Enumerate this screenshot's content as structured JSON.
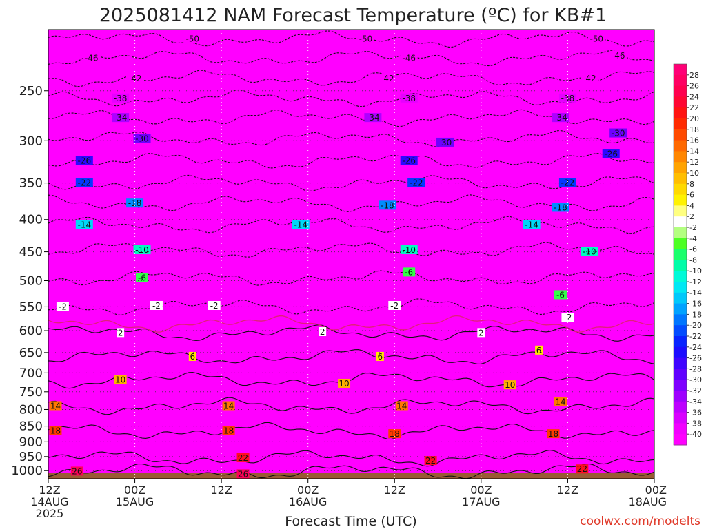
{
  "chart_data": {
    "type": "heatmap",
    "title": "2025081412 NAM Forecast Temperature (ºC) for KB#1",
    "xlabel": "Forecast Time (UTC)",
    "ylabel": "",
    "credit": "coolwx.com/modelts",
    "x_ticks": [
      {
        "hour": 0,
        "l1": "12Z",
        "l2": "14AUG",
        "l3": "2025"
      },
      {
        "hour": 12,
        "l1": "00Z",
        "l2": "15AUG",
        "l3": ""
      },
      {
        "hour": 24,
        "l1": "12Z",
        "l2": "",
        "l3": ""
      },
      {
        "hour": 36,
        "l1": "00Z",
        "l2": "16AUG",
        "l3": ""
      },
      {
        "hour": 48,
        "l1": "12Z",
        "l2": "",
        "l3": ""
      },
      {
        "hour": 60,
        "l1": "00Z",
        "l2": "17AUG",
        "l3": ""
      },
      {
        "hour": 72,
        "l1": "12Z",
        "l2": "",
        "l3": ""
      },
      {
        "hour": 84,
        "l1": "00Z",
        "l2": "18AUG",
        "l3": ""
      }
    ],
    "xlim": [
      0,
      84
    ],
    "y_ticks": [
      250,
      300,
      350,
      400,
      450,
      500,
      550,
      600,
      650,
      700,
      750,
      800,
      850,
      900,
      950,
      1000
    ],
    "ylim": [
      1030,
      200
    ],
    "y_scale": "log-pressure (hPa), inverted",
    "grid": true,
    "contour_levels": [
      26,
      22,
      18,
      14,
      10,
      6,
      2,
      -2,
      -6,
      -10,
      -14,
      -18,
      -22,
      -26,
      -30,
      -34,
      -38,
      -42,
      -46,
      -50
    ],
    "isotherm_pressures": [
      {
        "t": 26,
        "p": 1003
      },
      {
        "t": 22,
        "p": 955
      },
      {
        "t": 18,
        "p": 865
      },
      {
        "t": 14,
        "p": 790
      },
      {
        "t": 10,
        "p": 718
      },
      {
        "t": 6,
        "p": 660
      },
      {
        "t": 2,
        "p": 605
      },
      {
        "t": 0,
        "p": 585
      },
      {
        "t": -2,
        "p": 550
      },
      {
        "t": -6,
        "p": 495
      },
      {
        "t": -10,
        "p": 447
      },
      {
        "t": -14,
        "p": 408
      },
      {
        "t": -18,
        "p": 377
      },
      {
        "t": -22,
        "p": 350
      },
      {
        "t": -26,
        "p": 323
      },
      {
        "t": -30,
        "p": 298
      },
      {
        "t": -34,
        "p": 276
      },
      {
        "t": -38,
        "p": 257
      },
      {
        "t": -42,
        "p": 239
      },
      {
        "t": -46,
        "p": 222
      },
      {
        "t": -50,
        "p": 207
      }
    ],
    "contour_labels": [
      {
        "t": -50,
        "pos": [
          [
            20,
            207
          ],
          [
            44,
            207
          ],
          [
            76,
            207
          ]
        ]
      },
      {
        "t": -46,
        "pos": [
          [
            6,
            222
          ],
          [
            50,
            222
          ],
          [
            79,
            220
          ]
        ]
      },
      {
        "t": -42,
        "pos": [
          [
            12,
            239
          ],
          [
            47,
            239
          ],
          [
            75,
            239
          ]
        ]
      },
      {
        "t": -38,
        "pos": [
          [
            10,
            257
          ],
          [
            50,
            257
          ],
          [
            72,
            257
          ]
        ]
      },
      {
        "t": -34,
        "pos": [
          [
            10,
            276
          ],
          [
            45,
            276
          ],
          [
            71,
            276
          ]
        ]
      },
      {
        "t": -30,
        "pos": [
          [
            13,
            298
          ],
          [
            55,
            302
          ],
          [
            79,
            292
          ]
        ]
      },
      {
        "t": -26,
        "pos": [
          [
            5,
            323
          ],
          [
            50,
            323
          ],
          [
            78,
            315
          ]
        ]
      },
      {
        "t": -22,
        "pos": [
          [
            5,
            350
          ],
          [
            51,
            350
          ],
          [
            72,
            350
          ]
        ]
      },
      {
        "t": -18,
        "pos": [
          [
            12,
            377
          ],
          [
            47,
            380
          ],
          [
            71,
            383
          ]
        ]
      },
      {
        "t": -14,
        "pos": [
          [
            5,
            408
          ],
          [
            35,
            408
          ],
          [
            67,
            408
          ]
        ]
      },
      {
        "t": -10,
        "pos": [
          [
            13,
            447
          ],
          [
            50,
            447
          ],
          [
            75,
            450
          ]
        ]
      },
      {
        "t": -6,
        "pos": [
          [
            13,
            495
          ],
          [
            50,
            485
          ],
          [
            71,
            527
          ]
        ]
      },
      {
        "t": -2,
        "pos": [
          [
            2,
            550
          ],
          [
            15,
            548
          ],
          [
            23,
            548
          ],
          [
            48,
            548
          ],
          [
            72,
            572
          ]
        ]
      },
      {
        "t": 2,
        "pos": [
          [
            10,
            605
          ],
          [
            38,
            603
          ],
          [
            60,
            605
          ]
        ]
      },
      {
        "t": 6,
        "pos": [
          [
            20,
            660
          ],
          [
            46,
            660
          ],
          [
            68,
            645
          ]
        ]
      },
      {
        "t": 10,
        "pos": [
          [
            10,
            718
          ],
          [
            41,
            728
          ],
          [
            64,
            732
          ]
        ]
      },
      {
        "t": 14,
        "pos": [
          [
            1,
            790
          ],
          [
            25,
            790
          ],
          [
            49,
            790
          ],
          [
            71,
            778
          ]
        ]
      },
      {
        "t": 18,
        "pos": [
          [
            1,
            865
          ],
          [
            25,
            865
          ],
          [
            48,
            875
          ],
          [
            70,
            875
          ]
        ]
      },
      {
        "t": 22,
        "pos": [
          [
            27,
            955
          ],
          [
            53,
            965
          ],
          [
            74,
            995
          ]
        ]
      },
      {
        "t": 26,
        "pos": [
          [
            4,
            1003
          ],
          [
            27,
            1013
          ]
        ]
      }
    ],
    "colorbar": {
      "labels": [
        28,
        26,
        24,
        22,
        20,
        18,
        16,
        14,
        12,
        10,
        8,
        6,
        4,
        2,
        -2,
        -4,
        -6,
        -8,
        -10,
        -12,
        -14,
        -16,
        -18,
        -20,
        -22,
        -24,
        -26,
        -28,
        -30,
        -32,
        -34,
        -36,
        -38,
        -40
      ],
      "stops": [
        {
          "t": -52,
          "color": "#ff00ff"
        },
        {
          "t": -40,
          "color": "#ff00ff"
        },
        {
          "t": -36,
          "color": "#cc00ff"
        },
        {
          "t": -32,
          "color": "#8e00ff"
        },
        {
          "t": -28,
          "color": "#5000ff"
        },
        {
          "t": -24,
          "color": "#0a10ff"
        },
        {
          "t": -20,
          "color": "#0060ff"
        },
        {
          "t": -16,
          "color": "#00b8ff"
        },
        {
          "t": -12,
          "color": "#00f8f0"
        },
        {
          "t": -8,
          "color": "#00ff90"
        },
        {
          "t": -4,
          "color": "#66ff00"
        },
        {
          "t": -2,
          "color": "#ffffff"
        },
        {
          "t": 2,
          "color": "#ffffff"
        },
        {
          "t": 4,
          "color": "#ffff00"
        },
        {
          "t": 8,
          "color": "#ffcc00"
        },
        {
          "t": 12,
          "color": "#ff9500"
        },
        {
          "t": 16,
          "color": "#ff5a00"
        },
        {
          "t": 20,
          "color": "#ff1a00"
        },
        {
          "t": 24,
          "color": "#ff0044"
        },
        {
          "t": 30,
          "color": "#ff0080"
        }
      ]
    },
    "ground_color": "#9a5a33",
    "zero_line_color": "#e0207a"
  }
}
